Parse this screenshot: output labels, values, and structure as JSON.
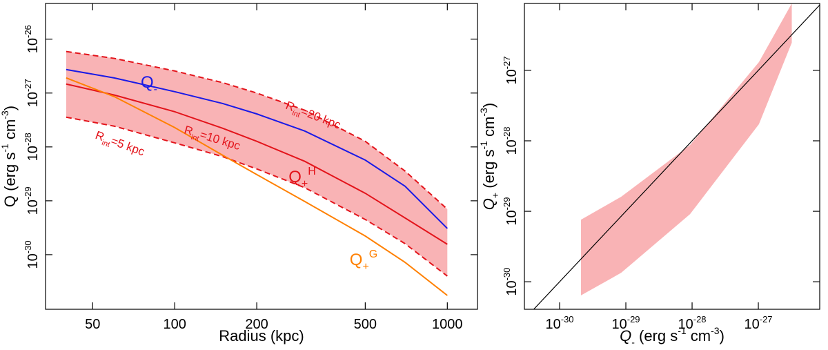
{
  "chart_data": [
    {
      "type": "line",
      "xlabel": [
        {
          "t": "Radius (kpc)"
        }
      ],
      "ylabel": [
        {
          "t": "Q (erg s"
        },
        {
          "t": "-1",
          "s": "sup"
        },
        {
          "t": " cm"
        },
        {
          "t": "-3",
          "s": "sup"
        },
        {
          "t": ")"
        }
      ],
      "xscale": "log",
      "yscale": "log",
      "xlim": [
        33.6,
        1290
      ],
      "ylim": [
        9.7e-32,
        4.6e-26
      ],
      "xticks": [
        50,
        100,
        200,
        500,
        1000
      ],
      "yticks": [
        {
          "value": 1e-30,
          "label": "10",
          "sup": "-30"
        },
        {
          "value": 1e-29,
          "label": "10",
          "sup": "-29"
        },
        {
          "value": 1e-28,
          "label": "10",
          "sup": "-28"
        },
        {
          "value": 1e-27,
          "label": "10",
          "sup": "-27"
        },
        {
          "value": 1e-26,
          "label": "10",
          "sup": "-26"
        }
      ],
      "x": [
        40,
        60,
        100,
        150,
        200,
        300,
        500,
        700,
        1000
      ],
      "series": [
        {
          "color": "#e3141b",
          "dash": true,
          "values": [
            5.9e-27,
            4.4e-27,
            2.57e-27,
            1.56e-27,
            1e-27,
            4.8e-28,
            1.27e-28,
            3.56e-29,
            7e-30
          ]
        },
        {
          "color": "#e3141b",
          "dash": true,
          "values": [
            3.56e-28,
            2.43e-28,
            1.19e-28,
            6.6e-29,
            3.9e-29,
            1.75e-29,
            4.5e-30,
            1.6e-30,
            4e-31
          ]
        },
        {
          "color": "#e3141b",
          "dash": false,
          "values": [
            1.47e-27,
            9.2e-28,
            4.5e-28,
            2.22e-28,
            1.27e-28,
            5.4e-29,
            1.38e-29,
            4.8e-30,
            1.56e-30
          ]
        },
        {
          "color": "#1a1ae6",
          "dash": false,
          "values": [
            2.73e-27,
            1.91e-27,
            1.06e-27,
            6.4e-28,
            4.1e-28,
            1.97e-28,
            5.7e-29,
            1.86e-29,
            3.07e-30
          ]
        },
        {
          "color": "#ff8000",
          "dash": false,
          "values": [
            1.91e-27,
            8.6e-28,
            2.29e-28,
            7e-29,
            3.07e-29,
            9.7e-30,
            2.22e-30,
            7.2e-31,
            1.75e-31
          ]
        }
      ],
      "fill_between": [
        0,
        1
      ],
      "fill_color": "#f9b3b5",
      "annotations": [
        {
          "color": "#1a1ae6",
          "parts": [
            {
              "t": "Q"
            },
            {
              "t": "-",
              "s": "sub"
            }
          ]
        },
        {
          "color": "#e3141b",
          "parts": [
            {
              "t": "R"
            },
            {
              "t": "int",
              "s": "sub"
            },
            {
              "t": "=20 kpc"
            }
          ]
        },
        {
          "color": "#e3141b",
          "parts": [
            {
              "t": "R"
            },
            {
              "t": "int",
              "s": "sub"
            },
            {
              "t": "=10 kpc"
            }
          ]
        },
        {
          "color": "#e3141b",
          "parts": [
            {
              "t": "R"
            },
            {
              "t": "int",
              "s": "sub"
            },
            {
              "t": "=5 kpc"
            }
          ]
        },
        {
          "color": "#e3141b",
          "parts": [
            {
              "t": "Q"
            },
            {
              "t": "+",
              "s": "sub"
            },
            {
              "t": "H",
              "s": "sup"
            }
          ]
        },
        {
          "color": "#ff8000",
          "parts": [
            {
              "t": "Q"
            },
            {
              "t": "+",
              "s": "sub"
            },
            {
              "t": "G",
              "s": "sup"
            }
          ]
        }
      ]
    },
    {
      "type": "area",
      "xlabel": [
        {
          "t": "Q",
          "s": "it"
        },
        {
          "t": "-",
          "s": "sub"
        },
        {
          "t": " (erg s"
        },
        {
          "t": "-1",
          "s": "sup"
        },
        {
          "t": " cm"
        },
        {
          "t": "-3",
          "s": "sup"
        },
        {
          "t": ")"
        }
      ],
      "ylabel": [
        {
          "t": "Q",
          "s": "it"
        },
        {
          "t": "+",
          "s": "sub"
        },
        {
          "t": " (erg s"
        },
        {
          "t": "-1",
          "s": "sup"
        },
        {
          "t": " cm"
        },
        {
          "t": "-3",
          "s": "sup"
        },
        {
          "t": ")"
        }
      ],
      "xscale": "log",
      "yscale": "log",
      "xlim": [
        2.94e-31,
        8.45e-27
      ],
      "ylim": [
        4.07e-31,
        8.9e-27
      ],
      "xticks": [
        {
          "value": 1e-30,
          "label": "10",
          "sup": "-30"
        },
        {
          "value": 1e-29,
          "label": "10",
          "sup": "-29"
        },
        {
          "value": 1e-28,
          "label": "10",
          "sup": "-28"
        },
        {
          "value": 1e-27,
          "label": "10",
          "sup": "-27"
        }
      ],
      "yticks": [
        {
          "value": 1e-30,
          "label": "10",
          "sup": "-30"
        },
        {
          "value": 1e-29,
          "label": "10",
          "sup": "-29"
        },
        {
          "value": 1e-28,
          "label": "10",
          "sup": "-28"
        },
        {
          "value": 1e-27,
          "label": "10",
          "sup": "-27"
        }
      ],
      "x": [
        2.1e-30,
        8.5e-30,
        9.3e-29,
        1.02e-27,
        3.2e-27
      ],
      "upper": [
        7.6e-30,
        1.61e-29,
        8.7e-29,
        1.31e-27,
        8.9e-27
      ],
      "lower": [
        6.4e-31,
        1.34e-30,
        9.1e-30,
        1.72e-28,
        2.47e-27
      ],
      "color": "#f9b3b5",
      "identity_line": true,
      "line_color": "#000000"
    }
  ]
}
